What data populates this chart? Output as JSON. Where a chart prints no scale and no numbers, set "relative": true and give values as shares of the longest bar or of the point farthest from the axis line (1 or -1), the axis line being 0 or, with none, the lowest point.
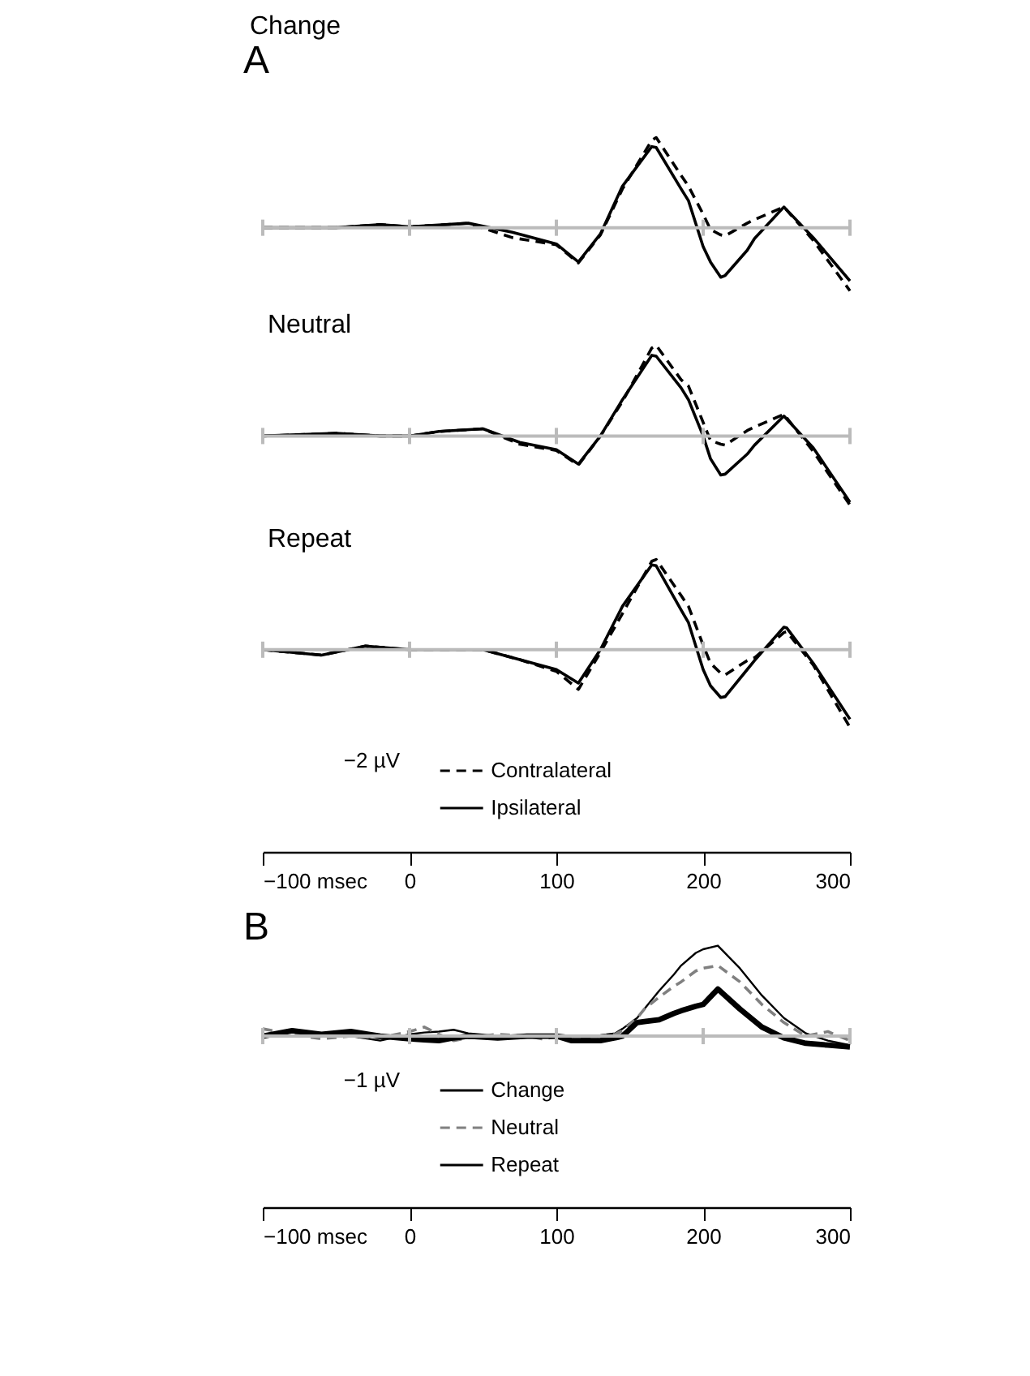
{
  "chart_data": [
    {
      "type": "line",
      "title": "Change",
      "annotations": [
        "A"
      ],
      "relative": true,
      "xlim": [
        -100,
        300
      ],
      "xticks": [
        {
          "value": -100,
          "label": null
        },
        {
          "value": 0,
          "label": null
        },
        {
          "value": 100,
          "label": null
        },
        {
          "value": 200,
          "label": null
        },
        {
          "value": 300,
          "label": null
        }
      ],
      "tick_labels": false,
      "grid": false,
      "legend": false,
      "x": [
        -100,
        -60,
        -50,
        -20,
        0,
        40,
        70,
        100,
        115,
        130,
        145,
        165,
        168,
        185,
        190,
        200,
        205,
        212,
        215,
        230,
        235,
        255,
        275,
        300
      ],
      "series": [
        {
          "color": "#000000",
          "line_style": "dashed",
          "values": [
            0,
            0,
            0,
            0.035,
            0.01,
            0.05,
            -0.11,
            -0.19,
            -0.39,
            -0.08,
            0.43,
            0.97,
            1.0,
            0.58,
            0.46,
            0.15,
            -0.02,
            -0.08,
            -0.09,
            0.05,
            0.09,
            0.23,
            -0.14,
            -0.7
          ]
        },
        {
          "color": "#000000",
          "line_style": "solid",
          "values": [
            0,
            0,
            0,
            0.035,
            0.01,
            0.05,
            -0.05,
            -0.18,
            -0.38,
            -0.07,
            0.46,
            0.9,
            0.89,
            0.43,
            0.3,
            -0.21,
            -0.38,
            -0.55,
            -0.53,
            -0.25,
            -0.12,
            0.23,
            -0.11,
            -0.59
          ]
        }
      ]
    },
    {
      "type": "line",
      "title": "Neutral",
      "relative": true,
      "xlim": [
        -100,
        300
      ],
      "xticks": [
        {
          "value": -100,
          "label": null
        },
        {
          "value": 0,
          "label": null
        },
        {
          "value": 100,
          "label": null
        },
        {
          "value": 200,
          "label": null
        },
        {
          "value": 300,
          "label": null
        }
      ],
      "tick_labels": false,
      "grid": false,
      "legend": false,
      "x": [
        -100,
        -50,
        -20,
        0,
        20,
        50,
        75,
        100,
        115,
        130,
        145,
        165,
        168,
        185,
        190,
        200,
        205,
        212,
        215,
        230,
        235,
        255,
        275,
        300
      ],
      "series": [
        {
          "color": "#000000",
          "line_style": "dashed",
          "values": [
            0,
            0.03,
            0,
            0,
            0.05,
            0.08,
            -0.09,
            -0.16,
            -0.32,
            0,
            0.38,
            0.97,
            1.0,
            0.62,
            0.55,
            0.15,
            -0.05,
            -0.09,
            -0.1,
            0.06,
            0.1,
            0.24,
            -0.17,
            -0.76
          ]
        },
        {
          "color": "#000000",
          "line_style": "solid",
          "values": [
            0,
            0.03,
            0,
            0,
            0.05,
            0.08,
            -0.07,
            -0.15,
            -0.31,
            0,
            0.4,
            0.89,
            0.88,
            0.53,
            0.4,
            0,
            -0.25,
            -0.43,
            -0.42,
            -0.2,
            -0.1,
            0.22,
            -0.13,
            -0.73
          ]
        }
      ]
    },
    {
      "type": "line",
      "title": "Repeat",
      "annotations": [
        "−2 µV"
      ],
      "relative": true,
      "xlim": [
        -100,
        300
      ],
      "xticks": [
        {
          "value": -100,
          "label": "−100 msec"
        },
        0,
        100,
        200,
        300
      ],
      "tick_labels": "x",
      "grid": false,
      "legend": "bottom",
      "x": [
        -100,
        -60,
        -30,
        0,
        50,
        75,
        100,
        115,
        130,
        145,
        165,
        168,
        185,
        190,
        200,
        205,
        212,
        215,
        230,
        235,
        255,
        257,
        275,
        300
      ],
      "series": [
        {
          "name": "Contralateral",
          "color": "#000000",
          "line_style": "dashed",
          "values": [
            0,
            -0.06,
            0.04,
            0,
            0,
            -0.11,
            -0.24,
            -0.44,
            -0.03,
            0.4,
            0.98,
            1.0,
            0.6,
            0.48,
            0.05,
            -0.15,
            -0.26,
            -0.28,
            -0.12,
            -0.09,
            0.19,
            0.2,
            -0.17,
            -0.86
          ]
        },
        {
          "name": "Ipsilateral",
          "color": "#000000",
          "line_style": "solid",
          "values": [
            0,
            -0.06,
            0.04,
            0,
            0,
            -0.11,
            -0.22,
            -0.37,
            0,
            0.48,
            0.94,
            0.93,
            0.44,
            0.3,
            -0.22,
            -0.4,
            -0.53,
            -0.52,
            -0.22,
            -0.12,
            0.25,
            0.24,
            -0.15,
            -0.77
          ]
        }
      ]
    },
    {
      "type": "line",
      "annotations": [
        "B",
        "−1 µV"
      ],
      "relative": true,
      "xlim": [
        -100,
        300
      ],
      "xticks": [
        {
          "value": -100,
          "label": "−100 msec"
        },
        0,
        100,
        200,
        300
      ],
      "tick_labels": "x",
      "grid": false,
      "legend": "bottom",
      "x": [
        -100,
        -80,
        -60,
        -40,
        -20,
        0,
        10,
        20,
        30,
        40,
        60,
        80,
        90,
        100,
        110,
        120,
        130,
        140,
        145,
        155,
        160,
        170,
        180,
        185,
        195,
        200,
        210,
        225,
        240,
        255,
        270,
        285,
        300
      ],
      "series": [
        {
          "name": "Change",
          "color": "#000000",
          "line_style": "solid",
          "values": [
            0.02,
            0.06,
            0.02,
            0.0,
            -0.05,
            0.02,
            0.04,
            0.05,
            0.07,
            0.03,
            0.0,
            0.01,
            0.0,
            0.02,
            0.0,
            0.0,
            0.01,
            0.03,
            0.08,
            0.2,
            0.3,
            0.5,
            0.68,
            0.78,
            0.92,
            0.96,
            1.0,
            0.75,
            0.45,
            0.2,
            0.03,
            -0.05,
            -0.1
          ]
        },
        {
          "name": "Neutral",
          "color": "#808080",
          "line_style": "dashed",
          "values": [
            0.08,
            0.02,
            -0.03,
            0.0,
            -0.02,
            0.05,
            0.1,
            0.02,
            -0.05,
            -0.02,
            0.02,
            0.0,
            -0.03,
            -0.01,
            0.0,
            -0.02,
            0.0,
            0.02,
            0.06,
            0.2,
            0.3,
            0.43,
            0.55,
            0.6,
            0.72,
            0.75,
            0.78,
            0.6,
            0.35,
            0.15,
            0.0,
            0.05,
            -0.05
          ]
        },
        {
          "name": "Repeat",
          "color": "#000000",
          "line_style": "solid",
          "values": [
            0.0,
            0.06,
            0.02,
            0.05,
            0.0,
            -0.03,
            -0.04,
            -0.05,
            -0.02,
            0.0,
            -0.02,
            0.0,
            0.0,
            0.0,
            -0.05,
            -0.05,
            -0.05,
            -0.02,
            0.0,
            0.15,
            0.16,
            0.18,
            0.25,
            0.28,
            0.33,
            0.35,
            0.52,
            0.3,
            0.1,
            -0.02,
            -0.08,
            -0.1,
            -0.12
          ]
        }
      ]
    }
  ]
}
